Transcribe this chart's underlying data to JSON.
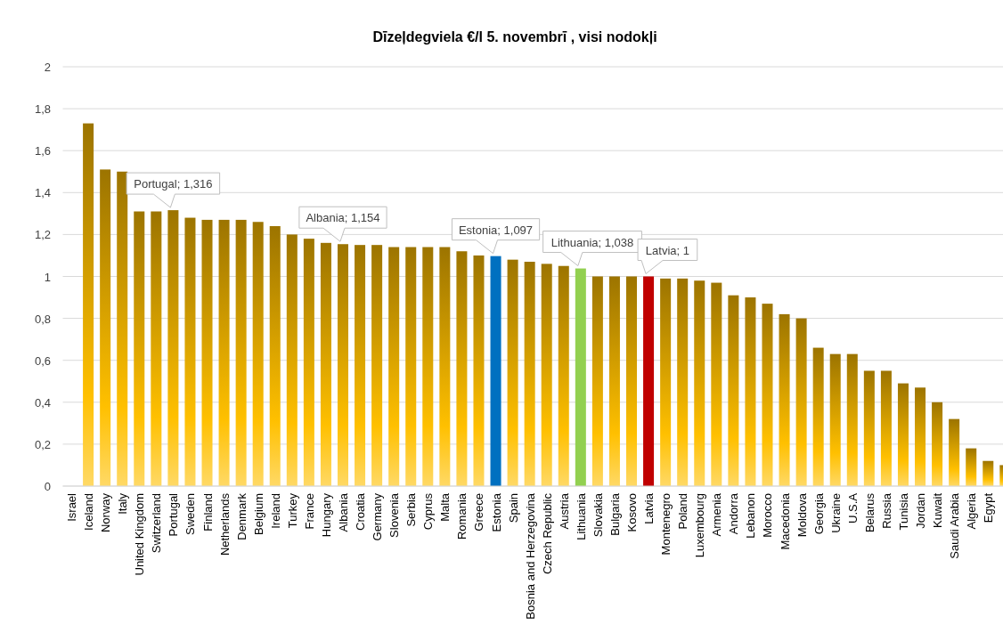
{
  "chart_data": {
    "type": "bar",
    "title": "Dīzeļdegviela  €/l 5. novembrī , visi nodokļi",
    "categories": [
      "Israel",
      "Iceland",
      "Norway",
      "Italy",
      "United Kingdom",
      "Switzerland",
      "Portugal",
      "Sweden",
      "Finland",
      "Netherlands",
      "Denmark",
      "Belgium",
      "Ireland",
      "Turkey",
      "France",
      "Hungary",
      "Albania",
      "Croatia",
      "Germany",
      "Slovenia",
      "Serbia",
      "Cyprus",
      "Malta",
      "Romania",
      "Greece",
      "Estonia",
      "Spain",
      "Bosnia and Herzegovina",
      "Czech Republic",
      "Austria",
      "Lithuania",
      "Slovakia",
      "Bulgaria",
      "Kosovo",
      "Latvia",
      "Montenegro",
      "Poland",
      "Luxembourg",
      "Armenia",
      "Andorra",
      "Lebanon",
      "Morocco",
      "Macedonia",
      "Moldova",
      "Georgia",
      "Ukraine",
      "U.S.A",
      "Belarus",
      "Russia",
      "Tunisia",
      "Jordan",
      "Kuwait",
      "Saudi Arabia",
      "Algeria",
      "Egypt",
      null
    ],
    "values": [
      null,
      1.73,
      1.51,
      1.5,
      1.31,
      1.31,
      1.316,
      1.28,
      1.27,
      1.27,
      1.27,
      1.26,
      1.24,
      1.2,
      1.18,
      1.16,
      1.154,
      1.15,
      1.15,
      1.14,
      1.14,
      1.14,
      1.14,
      1.12,
      1.1,
      1.097,
      1.08,
      1.07,
      1.06,
      1.05,
      1.038,
      1.0,
      1.0,
      1.0,
      1,
      0.99,
      0.99,
      0.98,
      0.97,
      0.91,
      0.9,
      0.87,
      0.82,
      0.8,
      0.66,
      0.63,
      0.63,
      0.55,
      0.55,
      0.49,
      0.47,
      0.4,
      0.32,
      0.18,
      0.12,
      0.1
    ],
    "colors": [
      null,
      "#ffc000",
      "#ffc000",
      "#ffc000",
      "#ffc000",
      "#ffc000",
      "#ffc000",
      "#ffc000",
      "#ffc000",
      "#ffc000",
      "#ffc000",
      "#ffc000",
      "#ffc000",
      "#ffc000",
      "#ffc000",
      "#ffc000",
      "#ffc000",
      "#ffc000",
      "#ffc000",
      "#ffc000",
      "#ffc000",
      "#ffc000",
      "#ffc000",
      "#ffc000",
      "#ffc000",
      "#0070c0",
      "#ffc000",
      "#ffc000",
      "#ffc000",
      "#ffc000",
      "#92d050",
      "#ffc000",
      "#ffc000",
      "#ffc000",
      "#c00000",
      "#ffc000",
      "#ffc000",
      "#ffc000",
      "#ffc000",
      "#ffc000",
      "#ffc000",
      "#ffc000",
      "#ffc000",
      "#ffc000",
      "#ffc000",
      "#ffc000",
      "#ffc000",
      "#ffc000",
      "#ffc000",
      "#ffc000",
      "#ffc000",
      "#ffc000",
      "#ffc000",
      "#ffc000",
      "#ffc000",
      "#ffc000"
    ],
    "ylim": [
      0,
      2
    ],
    "yticks": [
      0,
      {
        "value": 0.2,
        "label": "0,2"
      },
      {
        "value": 0.4,
        "label": "0,4"
      },
      {
        "value": 0.6,
        "label": "0,6"
      },
      {
        "value": 0.8,
        "label": "0,8"
      },
      1,
      {
        "value": 1.2,
        "label": "1,2"
      },
      {
        "value": 1.4,
        "label": "1,4"
      },
      {
        "value": 1.6,
        "label": "1,6"
      },
      {
        "value": 1.8,
        "label": "1,8"
      },
      2
    ],
    "grid": "y",
    "annotations": [
      {
        "text": "Portugal; 1,316",
        "x": "Portugal",
        "y": 1.316
      },
      {
        "text": "Albania; 1,154",
        "x": "Albania",
        "y": 1.154
      },
      {
        "text": "Estonia; 1,097",
        "x": "Estonia",
        "y": 1.097
      },
      {
        "text": "Lithuania; 1,038",
        "x": "Lithuania",
        "y": 1.038
      },
      {
        "text": "Latvia; 1",
        "x": "Latvia",
        "y": 1
      }
    ]
  }
}
